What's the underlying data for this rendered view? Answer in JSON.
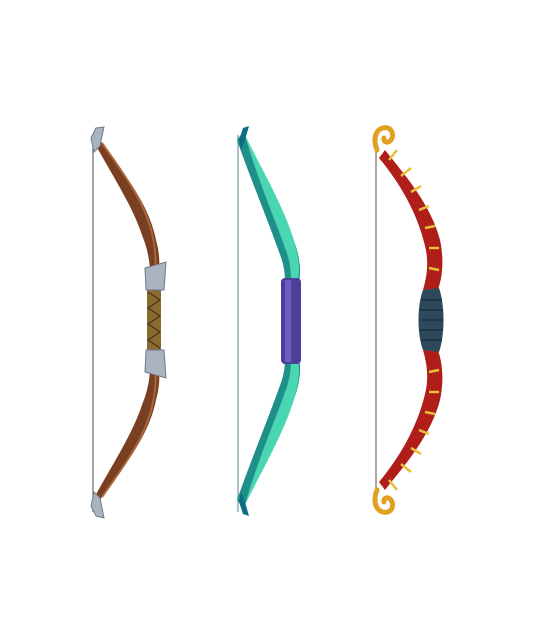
{
  "scene": {
    "background": "#ffffff",
    "bows": [
      {
        "id": "wooden-bow",
        "limb_color": "#7a3f20",
        "limb_highlight": "#a8653a",
        "grip_color": "#8a6a2e",
        "tip_color": "#aab4c0",
        "string_color": "#6b6b6b",
        "icon": "bow-icon"
      },
      {
        "id": "teal-bow",
        "limb_color": "#1f8f8a",
        "limb_highlight": "#49d6b0",
        "grip_color": "#4b3f9a",
        "tip_color": "#0c6e7e",
        "string_color": "#7a98a8",
        "icon": "bow-icon"
      },
      {
        "id": "red-bow",
        "limb_color": "#b01e1a",
        "limb_highlight": "#e6c23a",
        "grip_color": "#2c4a5c",
        "tip_color": "#e0a020",
        "string_color": "#7a6a5a",
        "icon": "bow-icon"
      }
    ]
  }
}
